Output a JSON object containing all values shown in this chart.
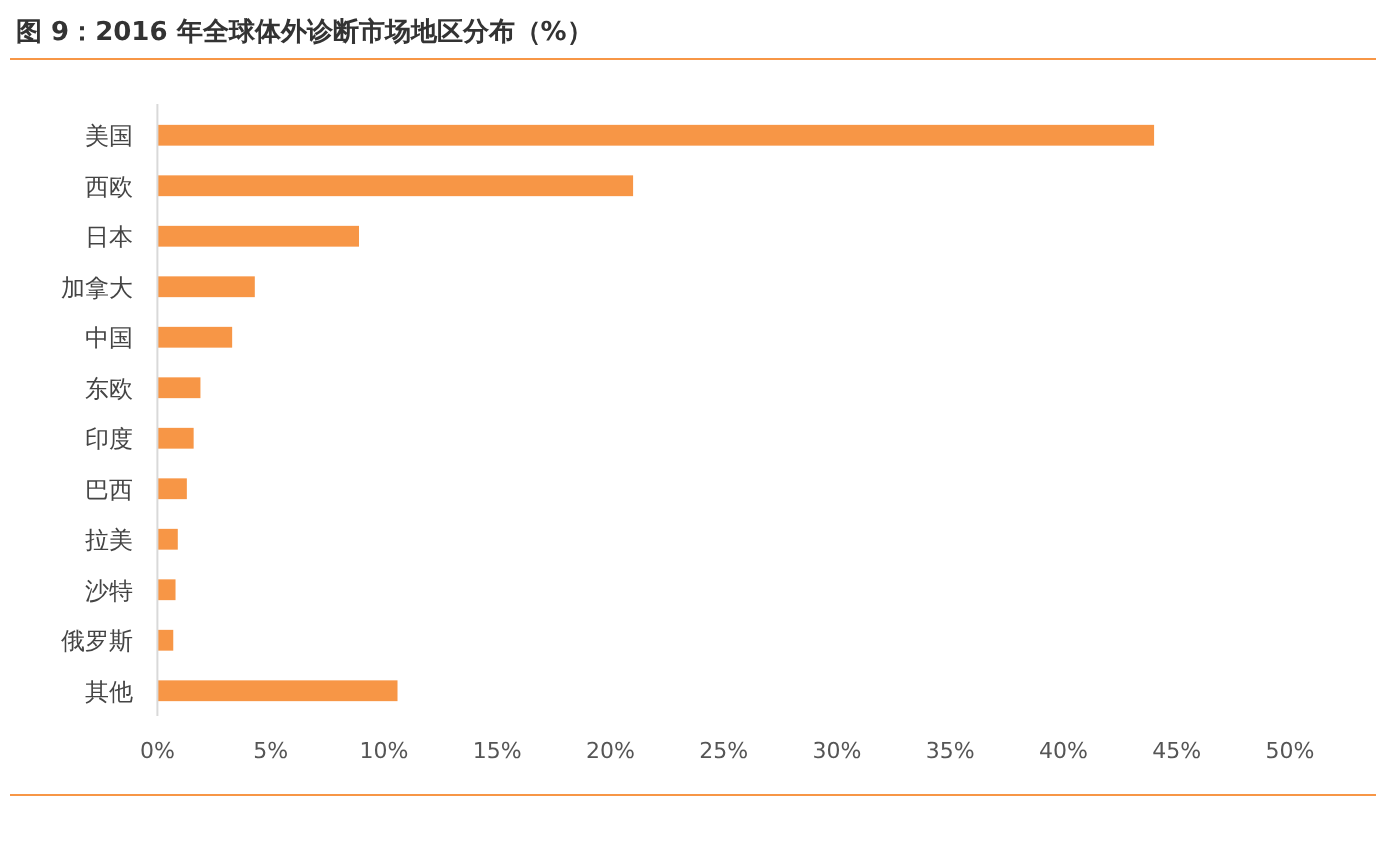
{
  "chart_data": {
    "type": "bar",
    "orientation": "horizontal",
    "title": "图 9：2016 年全球体外诊断市场地区分布（%）",
    "categories": [
      "美国",
      "西欧",
      "日本",
      "加拿大",
      "中国",
      "东欧",
      "印度",
      "巴西",
      "拉美",
      "沙特",
      "俄罗斯",
      "其他"
    ],
    "values": [
      44,
      21,
      8.9,
      4.3,
      3.3,
      1.9,
      1.6,
      1.3,
      0.9,
      0.8,
      0.7,
      10.6
    ],
    "color": "#f79646",
    "xlim": [
      0,
      50
    ],
    "xticks": [
      {
        "value": 0,
        "label": "0%"
      },
      {
        "value": 5,
        "label": "5%"
      },
      {
        "value": 10,
        "label": "10%"
      },
      {
        "value": 15,
        "label": "15%"
      },
      {
        "value": 20,
        "label": "20%"
      },
      {
        "value": 25,
        "label": "25%"
      },
      {
        "value": 30,
        "label": "30%"
      },
      {
        "value": 35,
        "label": "35%"
      },
      {
        "value": 40,
        "label": "40%"
      },
      {
        "value": 45,
        "label": "45%"
      },
      {
        "value": 50,
        "label": "50%"
      }
    ],
    "grid": false,
    "legend": false
  }
}
